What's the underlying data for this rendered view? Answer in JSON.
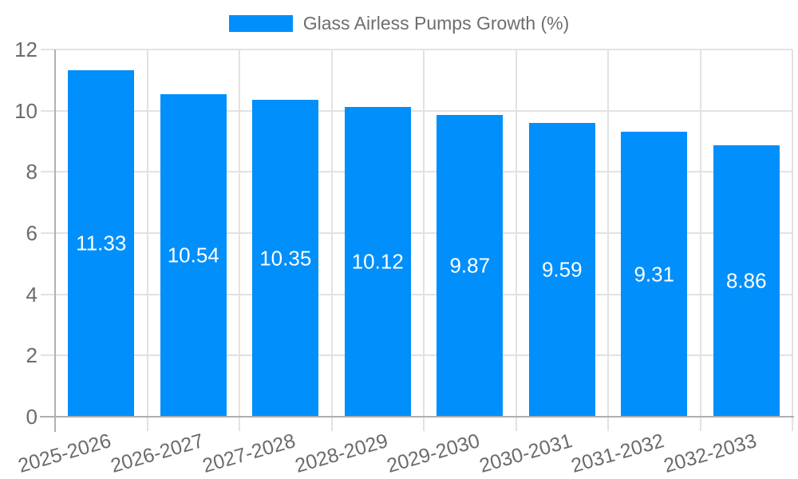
{
  "legend": {
    "label": "Glass Airless Pumps Growth (%)"
  },
  "chart_data": {
    "type": "bar",
    "title": "Glass Airless Pumps Growth (%)",
    "categories": [
      "2025-2026",
      "2026-2027",
      "2027-2028",
      "2028-2029",
      "2029-2030",
      "2030-2031",
      "2031-2032",
      "2032-2033"
    ],
    "series": [
      {
        "name": "Glass Airless Pumps Growth (%)",
        "values": [
          11.33,
          10.54,
          10.35,
          10.12,
          9.87,
          9.59,
          9.31,
          8.86
        ]
      }
    ],
    "value_labels": [
      "11.33",
      "10.54",
      "10.35",
      "10.12",
      "9.87",
      "9.59",
      "9.31",
      "8.86"
    ],
    "xlabel": "",
    "ylabel": "",
    "ylim": [
      0,
      12
    ],
    "yticks": [
      0,
      2,
      4,
      6,
      8,
      10,
      12
    ],
    "grid": true,
    "legend_position": "top",
    "colors": {
      "bar": "#008FFB",
      "grid": "#e2e2e2",
      "axis": "#b0b0b0",
      "tick_label": "#6b6b6b",
      "value_label": "#ffffff",
      "legend_text": "#6e6e6e"
    }
  }
}
